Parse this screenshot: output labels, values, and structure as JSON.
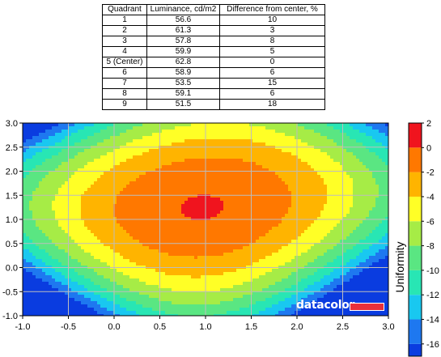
{
  "table": {
    "headers": [
      "Quadrant",
      "Luminance, cd/m2",
      "Difference from center, %"
    ],
    "rows": [
      [
        "1",
        "56.6",
        "10"
      ],
      [
        "2",
        "61.3",
        "3"
      ],
      [
        "3",
        "57.8",
        "8"
      ],
      [
        "4",
        "59.9",
        "5"
      ],
      [
        "5 (Center)",
        "62.8",
        "0"
      ],
      [
        "6",
        "58.9",
        "6"
      ],
      [
        "7",
        "53.5",
        "15"
      ],
      [
        "8",
        "59.1",
        "6"
      ],
      [
        "9",
        "51.5",
        "18"
      ]
    ]
  },
  "chart_data": {
    "type": "heatmap",
    "subtype": "filled-contour",
    "xlim": [
      -1.0,
      3.0
    ],
    "ylim": [
      -1.0,
      3.0
    ],
    "x_ticks": [
      "-1.0",
      "-0.5",
      "0.0",
      "0.5",
      "1.0",
      "1.5",
      "2.0",
      "2.5",
      "3.0"
    ],
    "y_ticks": [
      "3.0",
      "2.5",
      "2.0",
      "1.5",
      "1.0",
      "0.5",
      "0.0",
      "-0.5",
      "-1.0"
    ],
    "grid": true,
    "colorbar": {
      "label": "Uniformity",
      "ticks": [
        "2",
        "0",
        "-2",
        "-4",
        "-6",
        "-8",
        "-10",
        "-12",
        "-14",
        "-16"
      ],
      "range": [
        -17,
        2
      ],
      "levels": [
        {
          "from": -17,
          "to": -16,
          "color": "#0a3ce0"
        },
        {
          "from": -16,
          "to": -14,
          "color": "#1e78f0"
        },
        {
          "from": -14,
          "to": -12,
          "color": "#19c8f0"
        },
        {
          "from": -12,
          "to": -10,
          "color": "#28e6b4"
        },
        {
          "from": -10,
          "to": -8,
          "color": "#5ae682"
        },
        {
          "from": -8,
          "to": -6,
          "color": "#a6ec46"
        },
        {
          "from": -6,
          "to": -4,
          "color": "#ffff26"
        },
        {
          "from": -4,
          "to": -2,
          "color": "#ffb400"
        },
        {
          "from": -2,
          "to": 0,
          "color": "#ff7800"
        },
        {
          "from": 0,
          "to": 2,
          "color": "#f0141e"
        }
      ]
    },
    "quadrant_centers_x": [
      -0.5,
      1.0,
      2.5
    ],
    "quadrant_centers_y": [
      2.5,
      1.0,
      -0.5
    ],
    "values_by_row": [
      [
        -10,
        -3,
        -8
      ],
      [
        -5,
        0,
        -6
      ],
      [
        -15,
        -6,
        -18
      ]
    ]
  },
  "watermark": {
    "text": "datacolor"
  }
}
